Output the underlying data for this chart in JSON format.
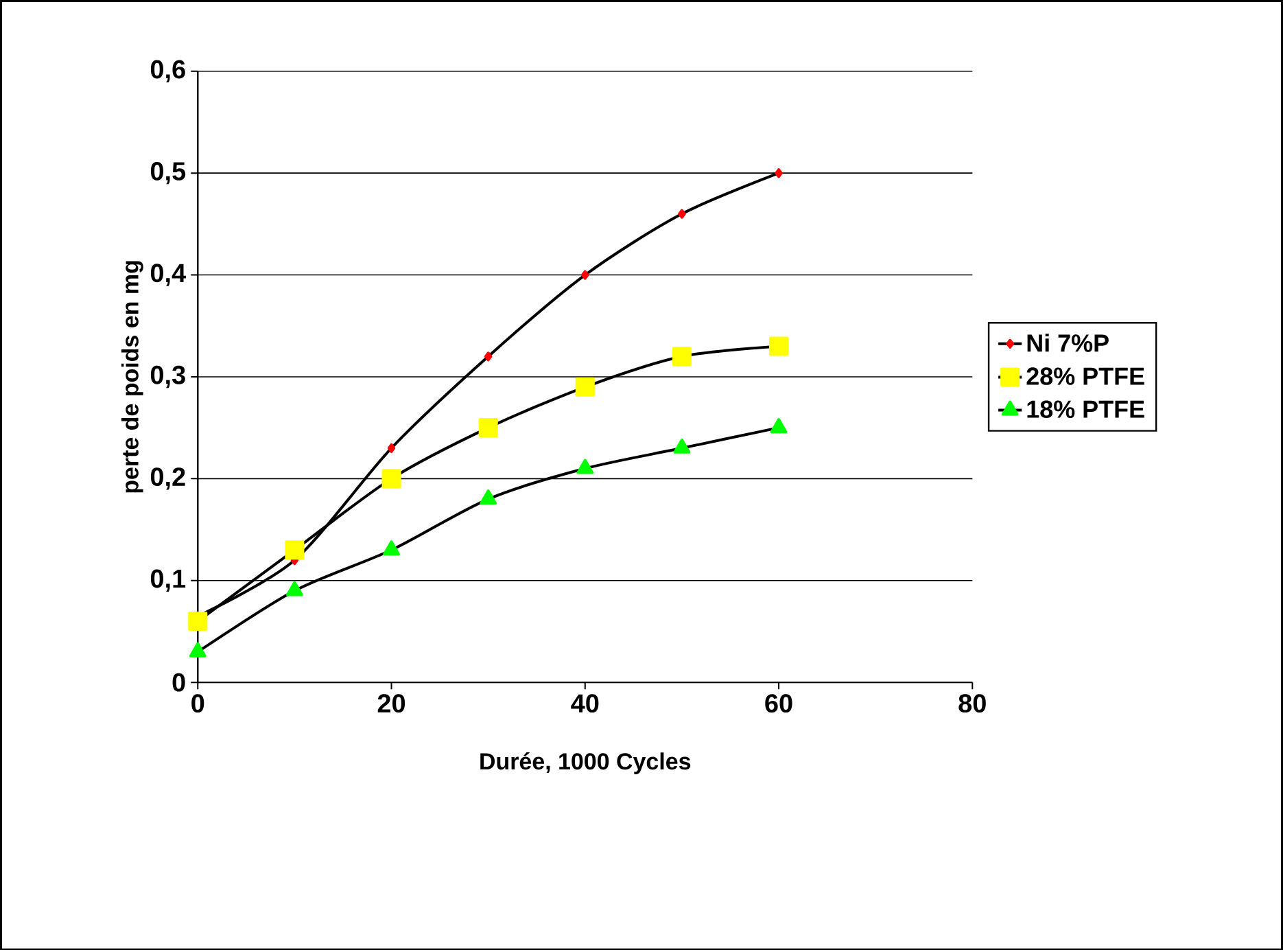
{
  "chart_data": {
    "type": "line",
    "xlabel": "Durée, 1000 Cycles",
    "ylabel": "perte de poids en mg",
    "x": [
      0,
      10,
      20,
      30,
      40,
      50,
      60
    ],
    "series": [
      {
        "name": "Ni 7%P",
        "color": "#ff0000",
        "marker": "diamond",
        "values": [
          0.065,
          0.12,
          0.23,
          0.32,
          0.4,
          0.46,
          0.5
        ]
      },
      {
        "name": "28% PTFE",
        "color": "#ffff00",
        "marker": "square",
        "values": [
          0.06,
          0.13,
          0.2,
          0.25,
          0.29,
          0.32,
          0.33
        ]
      },
      {
        "name": "18% PTFE",
        "color": "#00ff00",
        "marker": "triangle",
        "values": [
          0.03,
          0.09,
          0.13,
          0.18,
          0.21,
          0.23,
          0.25
        ]
      }
    ],
    "xlim": [
      0,
      80
    ],
    "xticks": [
      0,
      20,
      40,
      60,
      80
    ],
    "ylim": [
      0,
      0.6
    ],
    "yticks": [
      0,
      {
        "value": 0.1,
        "label": "0,1"
      },
      {
        "value": 0.2,
        "label": "0,2"
      },
      {
        "value": 0.3,
        "label": "0,3"
      },
      {
        "value": 0.4,
        "label": "0,4"
      },
      {
        "value": 0.5,
        "label": "0,5"
      },
      {
        "value": 0.6,
        "label": "0,6"
      }
    ],
    "grid": "y",
    "legend": "right",
    "line_style": "solid"
  }
}
